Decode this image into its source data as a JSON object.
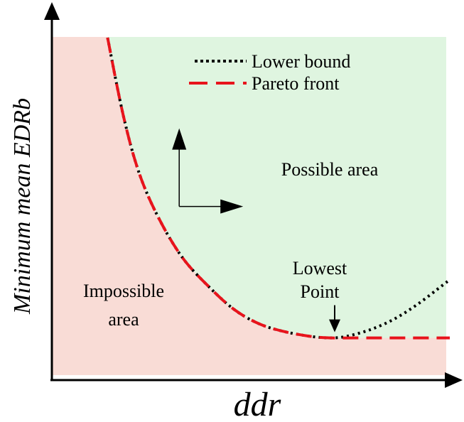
{
  "chart_data": {
    "type": "line",
    "title": "",
    "xlabel": "ddr",
    "ylabel": "Minimum mean EDRb",
    "axes_ticks": false,
    "grid": false,
    "legend_position": "top-right",
    "colors": {
      "impossible_region": "#f9dcd6",
      "possible_region": "#dff5e0",
      "axis": "#000000",
      "lower_bound": "#000000",
      "pareto_front": "#e8141c"
    },
    "series": [
      {
        "name": "Lower bound",
        "style": "dotted",
        "color": "#000000",
        "points": [
          [
            0.14,
            1.0
          ],
          [
            0.18,
            0.74
          ],
          [
            0.22,
            0.55
          ],
          [
            0.27,
            0.4
          ],
          [
            0.33,
            0.27
          ],
          [
            0.4,
            0.17
          ],
          [
            0.46,
            0.1
          ],
          [
            0.52,
            0.055
          ],
          [
            0.58,
            0.03
          ],
          [
            0.65,
            0.013
          ],
          [
            0.7,
            0.008
          ],
          [
            0.74,
            0.013
          ],
          [
            0.8,
            0.035
          ],
          [
            0.86,
            0.07
          ],
          [
            0.92,
            0.12
          ],
          [
            0.98,
            0.18
          ],
          [
            1.0,
            0.2
          ]
        ]
      },
      {
        "name": "Pareto front",
        "style": "dashed",
        "color": "#e8141c",
        "points": [
          [
            0.14,
            1.0
          ],
          [
            0.18,
            0.74
          ],
          [
            0.22,
            0.55
          ],
          [
            0.27,
            0.4
          ],
          [
            0.33,
            0.27
          ],
          [
            0.4,
            0.17
          ],
          [
            0.46,
            0.1
          ],
          [
            0.52,
            0.055
          ],
          [
            0.58,
            0.03
          ],
          [
            0.65,
            0.013
          ],
          [
            0.7,
            0.008
          ],
          [
            0.8,
            0.008
          ],
          [
            0.9,
            0.008
          ],
          [
            1.0,
            0.008
          ]
        ]
      }
    ],
    "annotations": {
      "possible": "Possible area",
      "impossible": "Impossible\narea",
      "lowest": "Lowest\nPoint"
    },
    "lowest_point": [
      0.7,
      0.008
    ],
    "direction_origin": [
      0.32,
      0.4
    ]
  }
}
